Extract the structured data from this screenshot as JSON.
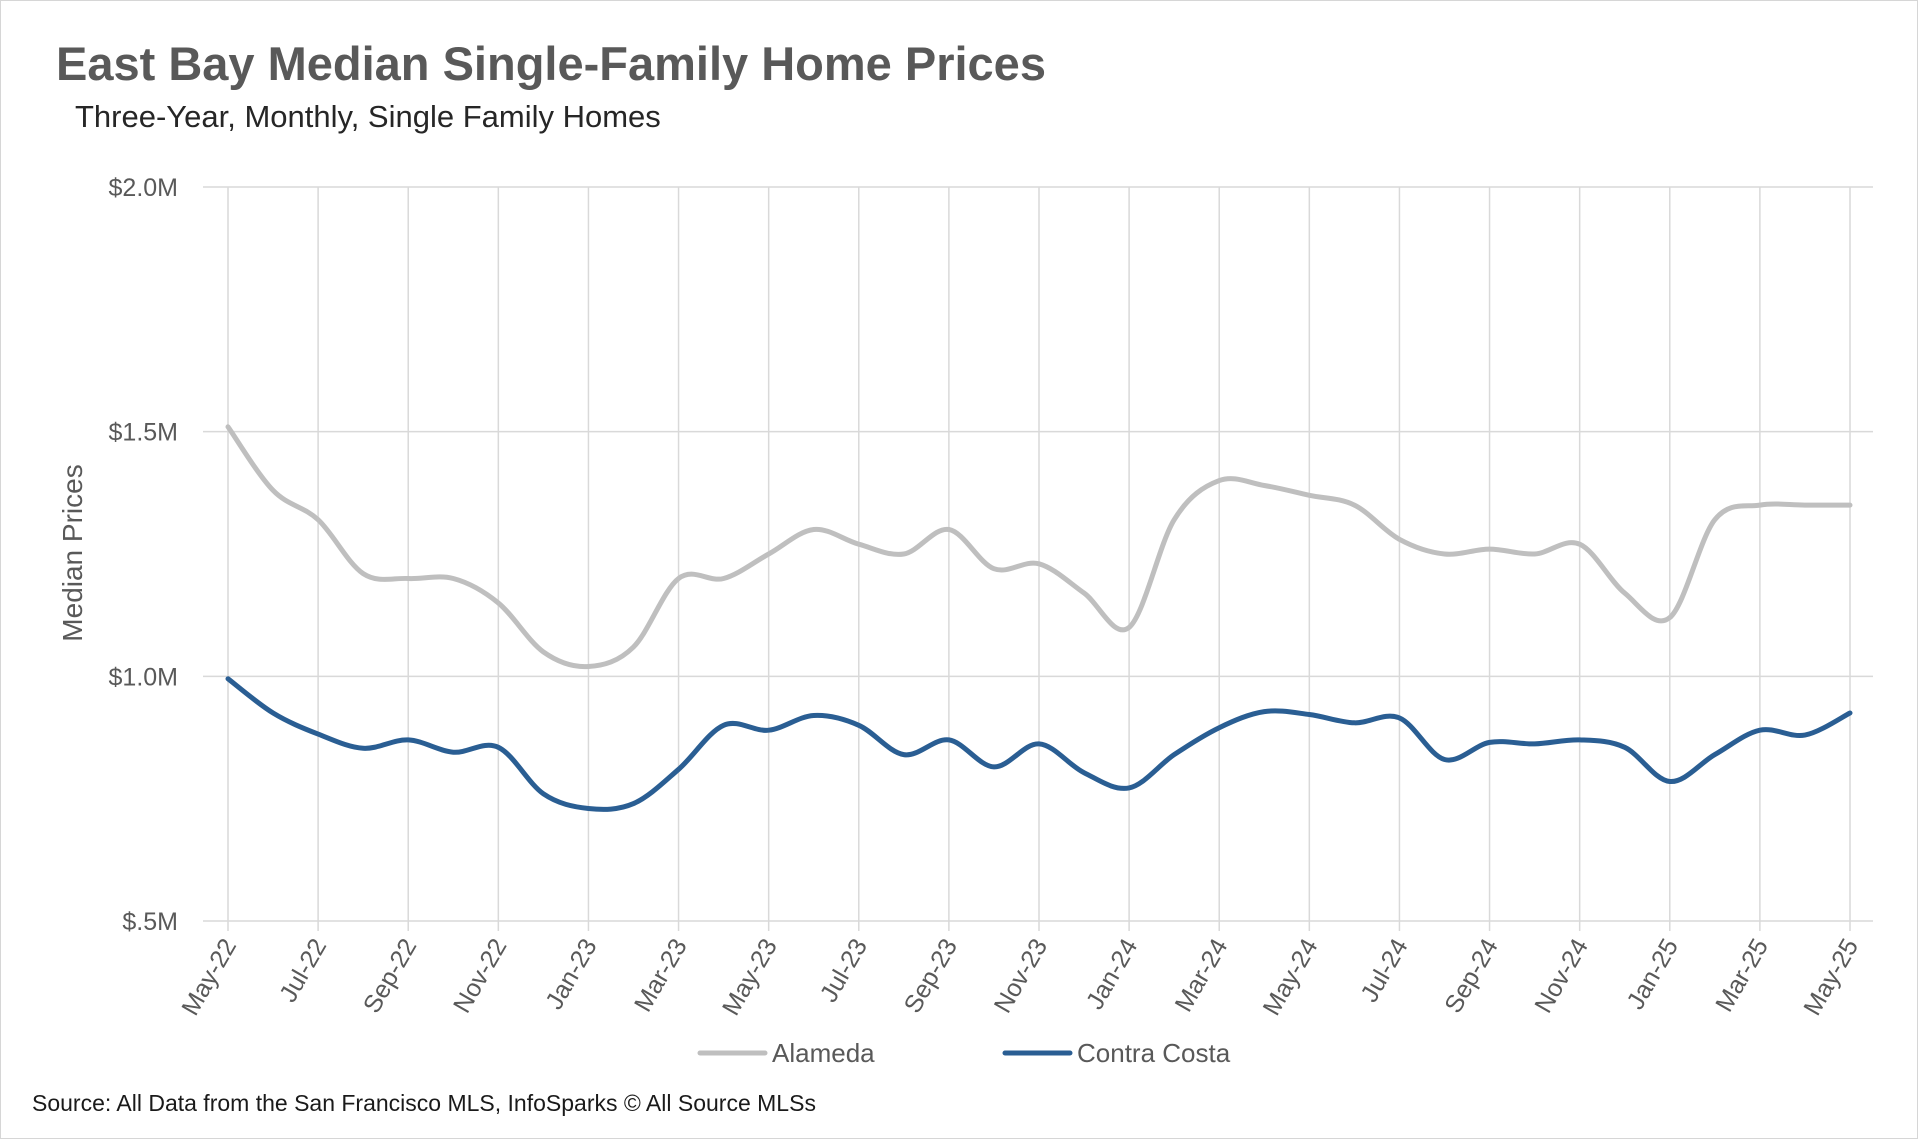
{
  "title": "East Bay Median Single-Family Home Prices",
  "subtitle": "Three-Year, Monthly, Single Family Homes",
  "source": "Source: All Data from the San Francisco MLS, InfoSparks © All Source MLSs",
  "chart_data": {
    "type": "line",
    "ylabel": "Median Prices",
    "xlabel": "",
    "ylim": [
      0.5,
      2.0
    ],
    "yticks": [
      {
        "value": 2.0,
        "label": "$2.0M"
      },
      {
        "value": 1.5,
        "label": "$1.5M"
      },
      {
        "value": 1.0,
        "label": "$1.0M"
      },
      {
        "value": 0.5,
        "label": "$.5M"
      }
    ],
    "x": [
      "May-22",
      "Jun-22",
      "Jul-22",
      "Aug-22",
      "Sep-22",
      "Oct-22",
      "Nov-22",
      "Dec-22",
      "Jan-23",
      "Feb-23",
      "Mar-23",
      "Apr-23",
      "May-23",
      "Jun-23",
      "Jul-23",
      "Aug-23",
      "Sep-23",
      "Oct-23",
      "Nov-23",
      "Dec-23",
      "Jan-24",
      "Feb-24",
      "Mar-24",
      "Apr-24",
      "May-24",
      "Jun-24",
      "Jul-24",
      "Aug-24",
      "Sep-24",
      "Oct-24",
      "Nov-24",
      "Dec-24",
      "Jan-25",
      "Feb-25",
      "Mar-25",
      "Apr-25",
      "May-25"
    ],
    "xtick_labels": [
      "May-22",
      "Jul-22",
      "Sep-22",
      "Nov-22",
      "Jan-23",
      "Mar-23",
      "May-23",
      "Jul-23",
      "Sep-23",
      "Nov-23",
      "Jan-24",
      "Mar-24",
      "May-24",
      "Jul-24",
      "Sep-24",
      "Nov-24",
      "Jan-25",
      "Mar-25",
      "May-25"
    ],
    "legend_position": "bottom",
    "series": [
      {
        "name": "Alameda",
        "color": "#bfbfbf",
        "values": [
          1.51,
          1.38,
          1.32,
          1.21,
          1.2,
          1.2,
          1.15,
          1.05,
          1.02,
          1.06,
          1.2,
          1.2,
          1.25,
          1.3,
          1.27,
          1.25,
          1.3,
          1.22,
          1.23,
          1.17,
          1.1,
          1.32,
          1.4,
          1.39,
          1.37,
          1.35,
          1.28,
          1.25,
          1.26,
          1.25,
          1.27,
          1.17,
          1.12,
          1.32,
          1.35,
          1.35,
          1.35
        ]
      },
      {
        "name": "Contra Costa",
        "color": "#2a5e93",
        "values": [
          0.995,
          0.925,
          0.882,
          0.853,
          0.87,
          0.845,
          0.855,
          0.76,
          0.73,
          0.74,
          0.81,
          0.9,
          0.89,
          0.92,
          0.9,
          0.84,
          0.87,
          0.815,
          0.862,
          0.803,
          0.772,
          0.84,
          0.895,
          0.928,
          0.922,
          0.905,
          0.915,
          0.83,
          0.865,
          0.862,
          0.87,
          0.855,
          0.785,
          0.84,
          0.89,
          0.88,
          0.925
        ]
      }
    ]
  }
}
